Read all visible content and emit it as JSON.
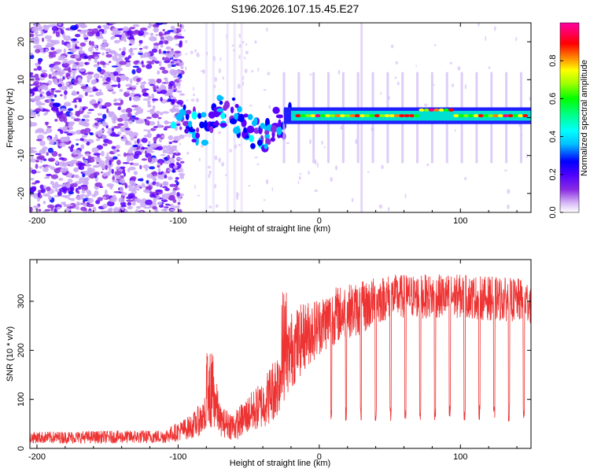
{
  "title": "S196.2026.107.15.45.E27",
  "chart_data": [
    {
      "type": "heatmap",
      "name": "spectrogram",
      "xlabel": "Height of straight line (km)",
      "ylabel": "Frequency (Hz)",
      "xlim": [
        -205,
        150
      ],
      "ylim": [
        -25,
        25
      ],
      "xticks": [
        -200,
        -100,
        0,
        100
      ],
      "yticks": [
        -20,
        -10,
        0,
        10,
        20
      ],
      "colorbar": {
        "label": "Normalized spectral amplitude",
        "range": [
          0,
          1
        ],
        "ticks": [
          0,
          0.2,
          0.4,
          0.6,
          0.8
        ],
        "tick_labels": [
          "0.0",
          "0.2",
          "0.4",
          "0.6",
          "0.8"
        ],
        "colors": [
          "#ffffff",
          "#c9a8f5",
          "#8a2be2",
          "#5b00ff",
          "#0000ff",
          "#00bfff",
          "#00ffff",
          "#00ff80",
          "#00ff00",
          "#80ff00",
          "#ffff00",
          "#ff8000",
          "#ff0000",
          "#ff0080",
          "#ff00c0"
        ]
      },
      "features": {
        "noise_region_x": [
          -205,
          -105
        ],
        "descending_track": [
          [
            -105,
            2
          ],
          [
            -90,
            -2
          ],
          [
            -80,
            -3
          ],
          [
            -70,
            2
          ],
          [
            -60,
            1
          ],
          [
            -50,
            -3
          ],
          [
            -40,
            -6
          ],
          [
            -30,
            -2
          ],
          [
            -20,
            0
          ]
        ],
        "steady_line_freq": 0.5,
        "steady_line_x": [
          -20,
          150
        ],
        "vertical_stripe_x": 30
      }
    },
    {
      "type": "line",
      "name": "snr",
      "xlabel": "Height of straight line (km)",
      "ylabel": "SNR (10 * v/v)",
      "xlim": [
        -205,
        150
      ],
      "ylim": [
        0,
        385
      ],
      "xticks": [
        -200,
        -100,
        0,
        100
      ],
      "yticks": [
        0,
        100,
        200,
        300
      ],
      "color": "#ee3333",
      "envelope": {
        "x": [
          -205,
          -110,
          -90,
          -80,
          -75,
          -70,
          -60,
          -50,
          -40,
          -30,
          -25,
          -20,
          -10,
          0,
          10,
          20,
          30,
          40,
          50,
          100,
          150
        ],
        "mean": [
          22,
          24,
          45,
          70,
          110,
          55,
          45,
          70,
          90,
          130,
          170,
          200,
          230,
          250,
          270,
          280,
          285,
          300,
          310,
          310,
          300
        ],
        "spread": [
          12,
          14,
          25,
          40,
          70,
          30,
          30,
          40,
          50,
          70,
          80,
          80,
          70,
          60,
          60,
          55,
          55,
          50,
          45,
          45,
          45
        ]
      },
      "dip_period_km": 10.5,
      "dip_start_km": 8,
      "dip_floor": 70
    }
  ]
}
